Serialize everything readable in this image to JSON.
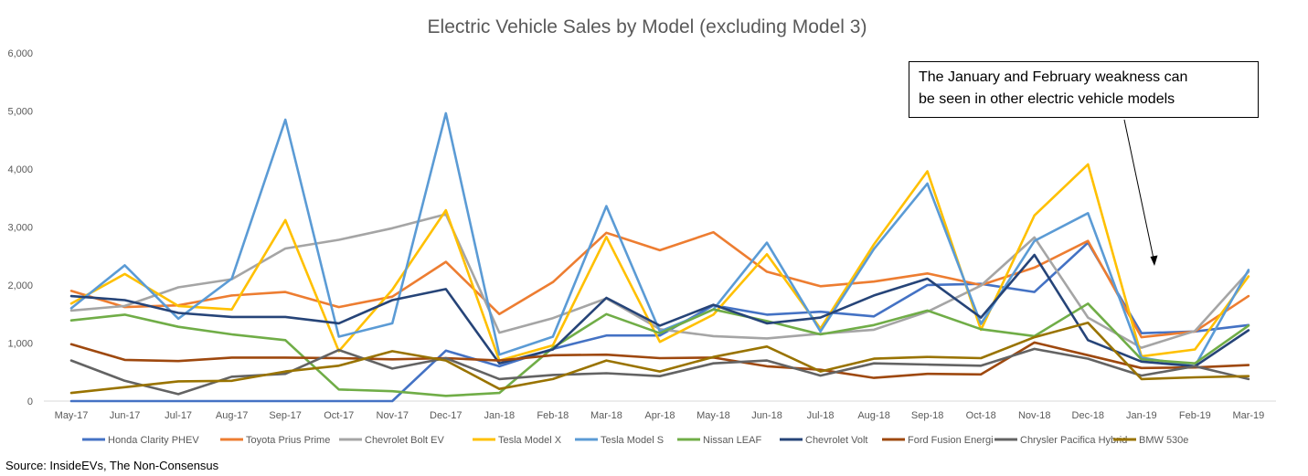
{
  "chart_data": {
    "type": "line",
    "title": "Electric Vehicle Sales by Model (excluding Model 3)",
    "xlabel": "",
    "ylabel": "",
    "ylim": [
      0,
      6000
    ],
    "yticks": [
      "0",
      "1,000",
      "2,000",
      "3,000",
      "4,000",
      "5,000",
      "6,000"
    ],
    "ytick_values": [
      0,
      1000,
      2000,
      3000,
      4000,
      5000,
      6000
    ],
    "grid": false,
    "legend_position": "bottom",
    "categories": [
      "May-17",
      "Jun-17",
      "Jul-17",
      "Aug-17",
      "Sep-17",
      "Oct-17",
      "Nov-17",
      "Dec-17",
      "Jan-18",
      "Feb-18",
      "Mar-18",
      "Apr-18",
      "May-18",
      "Jun-18",
      "Jul-18",
      "Aug-18",
      "Sep-18",
      "Oct-18",
      "Nov-18",
      "Dec-18",
      "Jan-19",
      "Feb-19",
      "Mar-19"
    ],
    "series": [
      {
        "name": "Honda Clarity PHEV",
        "color": "#4472C4",
        "values": [
          0,
          0,
          0,
          0,
          0,
          0,
          0,
          870,
          600,
          900,
          1130,
          1130,
          1650,
          1490,
          1540,
          1460,
          2000,
          2020,
          1880,
          2730,
          1170,
          1200,
          1310
        ]
      },
      {
        "name": "Toyota Prius Prime",
        "color": "#ED7D31",
        "values": [
          1900,
          1620,
          1650,
          1820,
          1880,
          1620,
          1800,
          2400,
          1500,
          2050,
          2900,
          2600,
          2910,
          2230,
          1980,
          2060,
          2200,
          2000,
          2300,
          2760,
          1100,
          1200,
          1810
        ]
      },
      {
        "name": "Chevrolet Bolt EV",
        "color": "#A5A5A5",
        "values": [
          1560,
          1640,
          1960,
          2100,
          2630,
          2780,
          2980,
          3220,
          1180,
          1430,
          1770,
          1240,
          1120,
          1080,
          1160,
          1230,
          1540,
          1990,
          2820,
          1440,
          920,
          1210,
          2230
        ]
      },
      {
        "name": "Tesla Model X",
        "color": "#FFC000",
        "values": [
          1680,
          2190,
          1640,
          1580,
          3120,
          860,
          1920,
          3290,
          700,
          960,
          2830,
          1020,
          1490,
          2530,
          1250,
          2700,
          3960,
          1230,
          3200,
          4080,
          770,
          890,
          2150
        ]
      },
      {
        "name": "Tesla Model S",
        "color": "#5B9BD5",
        "values": [
          1600,
          2340,
          1420,
          2110,
          4850,
          1110,
          1340,
          4960,
          800,
          1110,
          3360,
          1200,
          1580,
          2730,
          1200,
          2620,
          3750,
          1330,
          2760,
          3240,
          750,
          600,
          2260
        ]
      },
      {
        "name": "Nissan LEAF",
        "color": "#70AD47",
        "values": [
          1390,
          1490,
          1280,
          1150,
          1050,
          200,
          170,
          90,
          140,
          920,
          1500,
          1170,
          1580,
          1380,
          1150,
          1310,
          1560,
          1240,
          1120,
          1680,
          720,
          650,
          1300
        ]
      },
      {
        "name": "Chevrolet Volt",
        "color": "#264478",
        "values": [
          1810,
          1740,
          1520,
          1450,
          1450,
          1340,
          1740,
          1930,
          650,
          890,
          1780,
          1300,
          1660,
          1340,
          1440,
          1820,
          2110,
          1440,
          2520,
          1050,
          680,
          600,
          1220
        ]
      },
      {
        "name": "Ford Fusion Energi",
        "color": "#9E480E",
        "values": [
          980,
          710,
          690,
          750,
          750,
          740,
          720,
          740,
          700,
          790,
          800,
          740,
          750,
          600,
          540,
          400,
          470,
          460,
          1010,
          790,
          570,
          580,
          620
        ]
      },
      {
        "name": "Chrysler Pacifica Hybrid",
        "color": "#636363",
        "values": [
          700,
          350,
          120,
          420,
          470,
          880,
          560,
          740,
          380,
          450,
          480,
          430,
          650,
          700,
          440,
          650,
          630,
          610,
          900,
          730,
          440,
          600,
          380
        ]
      },
      {
        "name": "BMW 530e",
        "color": "#997300",
        "values": [
          140,
          240,
          340,
          350,
          510,
          610,
          860,
          700,
          210,
          380,
          700,
          510,
          760,
          940,
          510,
          730,
          760,
          740,
          1100,
          1350,
          380,
          410,
          430
        ]
      }
    ]
  },
  "annotation": {
    "lines": [
      "The January and February weakness can",
      "be seen in other electric vehicle models"
    ]
  },
  "source": "Source: InsideEVs, The Non-Consensus"
}
